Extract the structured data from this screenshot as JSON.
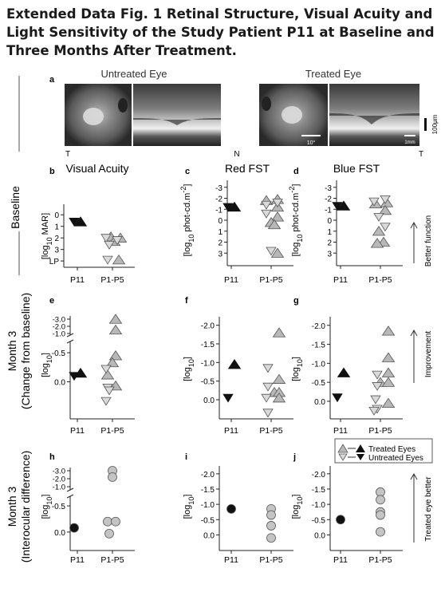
{
  "title": "Extended Data Fig. 1 Retinal Structure, Visual Acuity and Light Sensitivity of the Study Patient P11 at Baseline and Three Months After Treatment.",
  "row_labels": {
    "baseline": "Baseline",
    "month3_change_1": "Month 3",
    "month3_change_2": "(Change from baseline)",
    "month3_diff_1": "Month 3",
    "month3_diff_2": "(Interocular difference)"
  },
  "panel_a": {
    "letter": "a",
    "untreated_label": "Untreated Eye",
    "treated_label": "Treated Eye",
    "t_left": "T",
    "n_mid": "N",
    "t_right": "T",
    "scale_deg": "10°",
    "scale_um": "100μm",
    "scale_mm": "1mm"
  },
  "legend": {
    "treated": "Treated Eyes",
    "untreated": "Untreated Eyes"
  },
  "right_labels": {
    "better_function": "Better function",
    "improvement": "Improvement",
    "treated_better": "Treated eye better"
  },
  "chart_data": [
    {
      "id": "b",
      "letter": "b",
      "type": "scatter",
      "title": "Visual Acuity",
      "ylabel_html": "[log<tspan baseline-shift='sub' font-size='9'>10</tspan> MAR]",
      "inverted": true,
      "ylim": [
        -0.5,
        4.2
      ],
      "yticks": [
        {
          "v": 0,
          "label": "0"
        },
        {
          "v": 1,
          "label": "1"
        },
        {
          "v": 2,
          "label": "2"
        },
        {
          "v": 3,
          "label": "3"
        },
        {
          "v": 4,
          "label": "LP"
        }
      ],
      "categories": [
        "P11",
        "P1-P5"
      ],
      "series": [
        {
          "name": "Treated Eyes",
          "points": [
            {
              "cat": 0,
              "dx": 4,
              "y": 0.6
            },
            {
              "cat": 1,
              "dx": -2,
              "y": 1.9
            },
            {
              "cat": 1,
              "dx": 10,
              "y": 2.0
            },
            {
              "cat": 1,
              "dx": 2,
              "y": 2.3
            },
            {
              "cat": 1,
              "dx": 8,
              "y": 3.9
            }
          ]
        },
        {
          "name": "Untreated Eyes",
          "points": [
            {
              "cat": 0,
              "dx": -4,
              "y": 0.6
            },
            {
              "cat": 1,
              "dx": -8,
              "y": 2.0
            },
            {
              "cat": 1,
              "dx": 6,
              "y": 2.2
            },
            {
              "cat": 1,
              "dx": -4,
              "y": 2.6
            },
            {
              "cat": 1,
              "dx": -6,
              "y": 3.9
            }
          ]
        }
      ]
    },
    {
      "id": "c",
      "letter": "c",
      "type": "scatter",
      "title": "Red FST",
      "ylabel_html": "[log<tspan baseline-shift='sub' font-size='9'>10</tspan> phot-cd.m<tspan baseline-shift='super' font-size='9'>-2</tspan>]",
      "inverted": true,
      "ylim": [
        -3.2,
        3.2
      ],
      "yticks": [
        {
          "v": -3,
          "label": "-3"
        },
        {
          "v": -2,
          "label": "-2"
        },
        {
          "v": -1,
          "label": "-1"
        },
        {
          "v": 0,
          "label": "0"
        },
        {
          "v": 1,
          "label": "1"
        },
        {
          "v": 2,
          "label": "2"
        },
        {
          "v": 3,
          "label": "3"
        }
      ],
      "categories": [
        "P11",
        "P1-P5"
      ],
      "series": [
        {
          "name": "Treated Eyes",
          "points": [
            {
              "cat": 0,
              "dx": 4,
              "y": -1.2
            },
            {
              "cat": 1,
              "dx": -6,
              "y": -1.8
            },
            {
              "cat": 1,
              "dx": 8,
              "y": -1.9
            },
            {
              "cat": 1,
              "dx": 8,
              "y": -1.2
            },
            {
              "cat": 1,
              "dx": 8,
              "y": -0.3
            },
            {
              "cat": 1,
              "dx": 0,
              "y": 0.2
            },
            {
              "cat": 1,
              "dx": 4,
              "y": 0.4
            },
            {
              "cat": 1,
              "dx": 8,
              "y": 3.0
            }
          ]
        },
        {
          "name": "Untreated Eyes",
          "points": [
            {
              "cat": 0,
              "dx": -4,
              "y": -1.2
            },
            {
              "cat": 1,
              "dx": -6,
              "y": -1.4
            },
            {
              "cat": 1,
              "dx": 8,
              "y": -1.6
            },
            {
              "cat": 1,
              "dx": -6,
              "y": -0.6
            },
            {
              "cat": 1,
              "dx": 0,
              "y": 2.8
            }
          ]
        }
      ]
    },
    {
      "id": "d",
      "letter": "d",
      "type": "scatter",
      "title": "Blue FST",
      "ylabel_html": "[log<tspan baseline-shift='sub' font-size='9'>10</tspan> phot-cd.m<tspan baseline-shift='super' font-size='9'>-2</tspan>]",
      "inverted": true,
      "ylim": [
        -3.2,
        3.2
      ],
      "yticks": [
        {
          "v": -3,
          "label": "-3"
        },
        {
          "v": -2,
          "label": "-2"
        },
        {
          "v": -1,
          "label": "-1"
        },
        {
          "v": 0,
          "label": "0"
        },
        {
          "v": 1,
          "label": "1"
        },
        {
          "v": 2,
          "label": "2"
        },
        {
          "v": 3,
          "label": "3"
        }
      ],
      "categories": [
        "P11",
        "P1-P5"
      ],
      "series": [
        {
          "name": "Treated Eyes",
          "points": [
            {
              "cat": 0,
              "dx": 4,
              "y": -1.3
            },
            {
              "cat": 1,
              "dx": -6,
              "y": -1.5
            },
            {
              "cat": 1,
              "dx": 8,
              "y": -1.6
            },
            {
              "cat": 1,
              "dx": 6,
              "y": -0.9
            },
            {
              "cat": 1,
              "dx": -2,
              "y": 1.0
            },
            {
              "cat": 1,
              "dx": 4,
              "y": 2.0
            },
            {
              "cat": 1,
              "dx": -4,
              "y": 2.1
            }
          ]
        },
        {
          "name": "Untreated Eyes",
          "points": [
            {
              "cat": 0,
              "dx": -4,
              "y": -1.3
            },
            {
              "cat": 1,
              "dx": -8,
              "y": -1.7
            },
            {
              "cat": 1,
              "dx": 6,
              "y": -1.9
            },
            {
              "cat": 1,
              "dx": -2,
              "y": -0.3
            },
            {
              "cat": 1,
              "dx": 6,
              "y": 0.6
            }
          ]
        }
      ]
    },
    {
      "id": "e",
      "letter": "e",
      "type": "scatter",
      "ylabel_html": "[log<tspan baseline-shift='sub' font-size='9'>10</tspan>]",
      "inverted": true,
      "ylim": [
        -1.05,
        0.5
      ],
      "axis_break": true,
      "yticks": [
        {
          "v": 0,
          "label": "0.0"
        },
        {
          "v": -0.5,
          "label": "-0.5"
        }
      ],
      "upper_ticks": [
        {
          "label": "-3.0",
          "y": -3.0
        },
        {
          "label": "-2.0",
          "y": -2.0
        },
        {
          "label": "-1.0",
          "y": -1.0
        }
      ],
      "categories": [
        "P11",
        "P1-P5"
      ],
      "series": [
        {
          "name": "Treated Eyes",
          "points": [
            {
              "cat": 0,
              "dx": 4,
              "y": -0.15
            },
            {
              "cat": 1,
              "dx": 4,
              "y": -3.0
            },
            {
              "cat": 1,
              "dx": 4,
              "y": -1.5
            },
            {
              "cat": 1,
              "dx": 4,
              "y": -0.45
            },
            {
              "cat": 1,
              "dx": 0,
              "y": -0.33
            },
            {
              "cat": 1,
              "dx": -6,
              "y": -0.12
            },
            {
              "cat": 1,
              "dx": 4,
              "y": 0.07
            }
          ]
        },
        {
          "name": "Untreated Eyes",
          "points": [
            {
              "cat": 0,
              "dx": -4,
              "y": -0.1
            },
            {
              "cat": 1,
              "dx": -8,
              "y": -0.22
            },
            {
              "cat": 1,
              "dx": -6,
              "y": 0.1
            },
            {
              "cat": 1,
              "dx": -4,
              "y": 0.15
            },
            {
              "cat": 1,
              "dx": -8,
              "y": 0.33
            }
          ]
        }
      ]
    },
    {
      "id": "f",
      "letter": "f",
      "type": "scatter",
      "ylabel_html": "[log<tspan baseline-shift='sub' font-size='9'>10</tspan>]",
      "inverted": true,
      "ylim": [
        -2.1,
        0.45
      ],
      "yticks": [
        {
          "v": -2,
          "label": "-2.0"
        },
        {
          "v": -1.5,
          "label": "-1.5"
        },
        {
          "v": -1,
          "label": "-1.0"
        },
        {
          "v": -0.5,
          "label": "-0.5"
        },
        {
          "v": 0,
          "label": "0.0"
        }
      ],
      "categories": [
        "P11",
        "P1-P5"
      ],
      "series": [
        {
          "name": "Treated Eyes",
          "points": [
            {
              "cat": 0,
              "dx": 4,
              "y": -0.95
            },
            {
              "cat": 1,
              "dx": 10,
              "y": -1.8
            },
            {
              "cat": 1,
              "dx": 10,
              "y": -0.55
            },
            {
              "cat": 1,
              "dx": 4,
              "y": -0.2
            },
            {
              "cat": 1,
              "dx": 10,
              "y": -0.2
            },
            {
              "cat": 1,
              "dx": 10,
              "y": -0.05
            }
          ]
        },
        {
          "name": "Untreated Eyes",
          "points": [
            {
              "cat": 0,
              "dx": -4,
              "y": -0.05
            },
            {
              "cat": 1,
              "dx": -4,
              "y": -0.85
            },
            {
              "cat": 1,
              "dx": -4,
              "y": -0.35
            },
            {
              "cat": 1,
              "dx": -6,
              "y": -0.05
            },
            {
              "cat": 1,
              "dx": -4,
              "y": 0.35
            }
          ]
        }
      ]
    },
    {
      "id": "g",
      "letter": "g",
      "type": "scatter",
      "ylabel_html": "[log<tspan baseline-shift='sub' font-size='9'>10</tspan>]",
      "inverted": true,
      "ylim": [
        -2.1,
        0.4
      ],
      "yticks": [
        {
          "v": -2,
          "label": "-2.0"
        },
        {
          "v": -1.5,
          "label": "-1.5"
        },
        {
          "v": -1,
          "label": "-1.0"
        },
        {
          "v": -0.5,
          "label": "-0.5"
        },
        {
          "v": 0,
          "label": "0.0"
        }
      ],
      "categories": [
        "P11",
        "P1-P5"
      ],
      "series": [
        {
          "name": "Treated Eyes",
          "points": [
            {
              "cat": 0,
              "dx": 4,
              "y": -0.75
            },
            {
              "cat": 1,
              "dx": 10,
              "y": -1.85
            },
            {
              "cat": 1,
              "dx": 10,
              "y": -1.15
            },
            {
              "cat": 1,
              "dx": 10,
              "y": -0.75
            },
            {
              "cat": 1,
              "dx": 0,
              "y": -0.5
            },
            {
              "cat": 1,
              "dx": 10,
              "y": -0.5
            },
            {
              "cat": 1,
              "dx": 10,
              "y": 0.05
            }
          ]
        },
        {
          "name": "Untreated Eyes",
          "points": [
            {
              "cat": 0,
              "dx": -4,
              "y": -0.1
            },
            {
              "cat": 1,
              "dx": -4,
              "y": -0.7
            },
            {
              "cat": 1,
              "dx": -4,
              "y": -0.4
            },
            {
              "cat": 1,
              "dx": -6,
              "y": -0.05
            },
            {
              "cat": 1,
              "dx": -4,
              "y": 0.2
            },
            {
              "cat": 1,
              "dx": -8,
              "y": 0.25
            }
          ]
        }
      ]
    },
    {
      "id": "h",
      "letter": "h",
      "type": "scatter",
      "ylabel_html": "[log<tspan baseline-shift='sub' font-size='9'>10</tspan>]",
      "inverted": true,
      "ylim": [
        -1.05,
        0.2
      ],
      "axis_break": true,
      "yticks": [
        {
          "v": 0,
          "label": "0.0"
        },
        {
          "v": -0.5,
          "label": "-0.5"
        }
      ],
      "upper_ticks": [
        {
          "label": "-3.0",
          "y": -3.0
        },
        {
          "label": "-2.0",
          "y": -2.0
        },
        {
          "label": "-1.0",
          "y": -1.0
        }
      ],
      "categories": [
        "P11",
        "P1-P5"
      ],
      "series": [
        {
          "name": "Interocular difference",
          "marker": "circle",
          "points": [
            {
              "cat": 0,
              "dx": -4,
              "y": -0.08,
              "filled": true
            },
            {
              "cat": 1,
              "dx": 0,
              "y": -3.0
            },
            {
              "cat": 1,
              "dx": 0,
              "y": -2.2
            },
            {
              "cat": 1,
              "dx": -6,
              "y": -0.2
            },
            {
              "cat": 1,
              "dx": 4,
              "y": -0.2
            },
            {
              "cat": 1,
              "dx": -4,
              "y": 0.03
            }
          ]
        }
      ]
    },
    {
      "id": "i",
      "letter": "i",
      "type": "scatter",
      "ylabel_html": "[log<tspan baseline-shift='sub' font-size='9'>10</tspan>]",
      "inverted": true,
      "ylim": [
        -2.1,
        0.25
      ],
      "yticks": [
        {
          "v": -2,
          "label": "-2.0"
        },
        {
          "v": -1.5,
          "label": "-1.5"
        },
        {
          "v": -1,
          "label": "-1.0"
        },
        {
          "v": -0.5,
          "label": "-0.5"
        },
        {
          "v": 0,
          "label": "0.0"
        }
      ],
      "categories": [
        "P11",
        "P1-P5"
      ],
      "series": [
        {
          "name": "Interocular difference",
          "marker": "circle",
          "points": [
            {
              "cat": 0,
              "dx": 0,
              "y": -0.85,
              "filled": true
            },
            {
              "cat": 1,
              "dx": 0,
              "y": -0.85
            },
            {
              "cat": 1,
              "dx": 0,
              "y": -0.65
            },
            {
              "cat": 1,
              "dx": 0,
              "y": -0.3
            },
            {
              "cat": 1,
              "dx": 0,
              "y": 0.1
            }
          ]
        }
      ]
    },
    {
      "id": "j",
      "letter": "j",
      "type": "scatter",
      "ylabel_html": "[log<tspan baseline-shift='sub' font-size='9'>10</tspan>]",
      "inverted": true,
      "ylim": [
        -2.1,
        0.25
      ],
      "yticks": [
        {
          "v": -2,
          "label": "-2.0"
        },
        {
          "v": -1.5,
          "label": "-1.5"
        },
        {
          "v": -1,
          "label": "-1.0"
        },
        {
          "v": -0.5,
          "label": "-0.5"
        },
        {
          "v": 0,
          "label": "0.0"
        }
      ],
      "categories": [
        "P11",
        "P1-P5"
      ],
      "series": [
        {
          "name": "Interocular difference",
          "marker": "circle",
          "points": [
            {
              "cat": 0,
              "dx": 0,
              "y": -0.5,
              "filled": true
            },
            {
              "cat": 1,
              "dx": 0,
              "y": -1.4
            },
            {
              "cat": 1,
              "dx": 0,
              "y": -1.15
            },
            {
              "cat": 1,
              "dx": 0,
              "y": -0.75
            },
            {
              "cat": 1,
              "dx": 0,
              "y": -0.65
            },
            {
              "cat": 1,
              "dx": 0,
              "y": -0.1
            }
          ]
        }
      ]
    }
  ]
}
